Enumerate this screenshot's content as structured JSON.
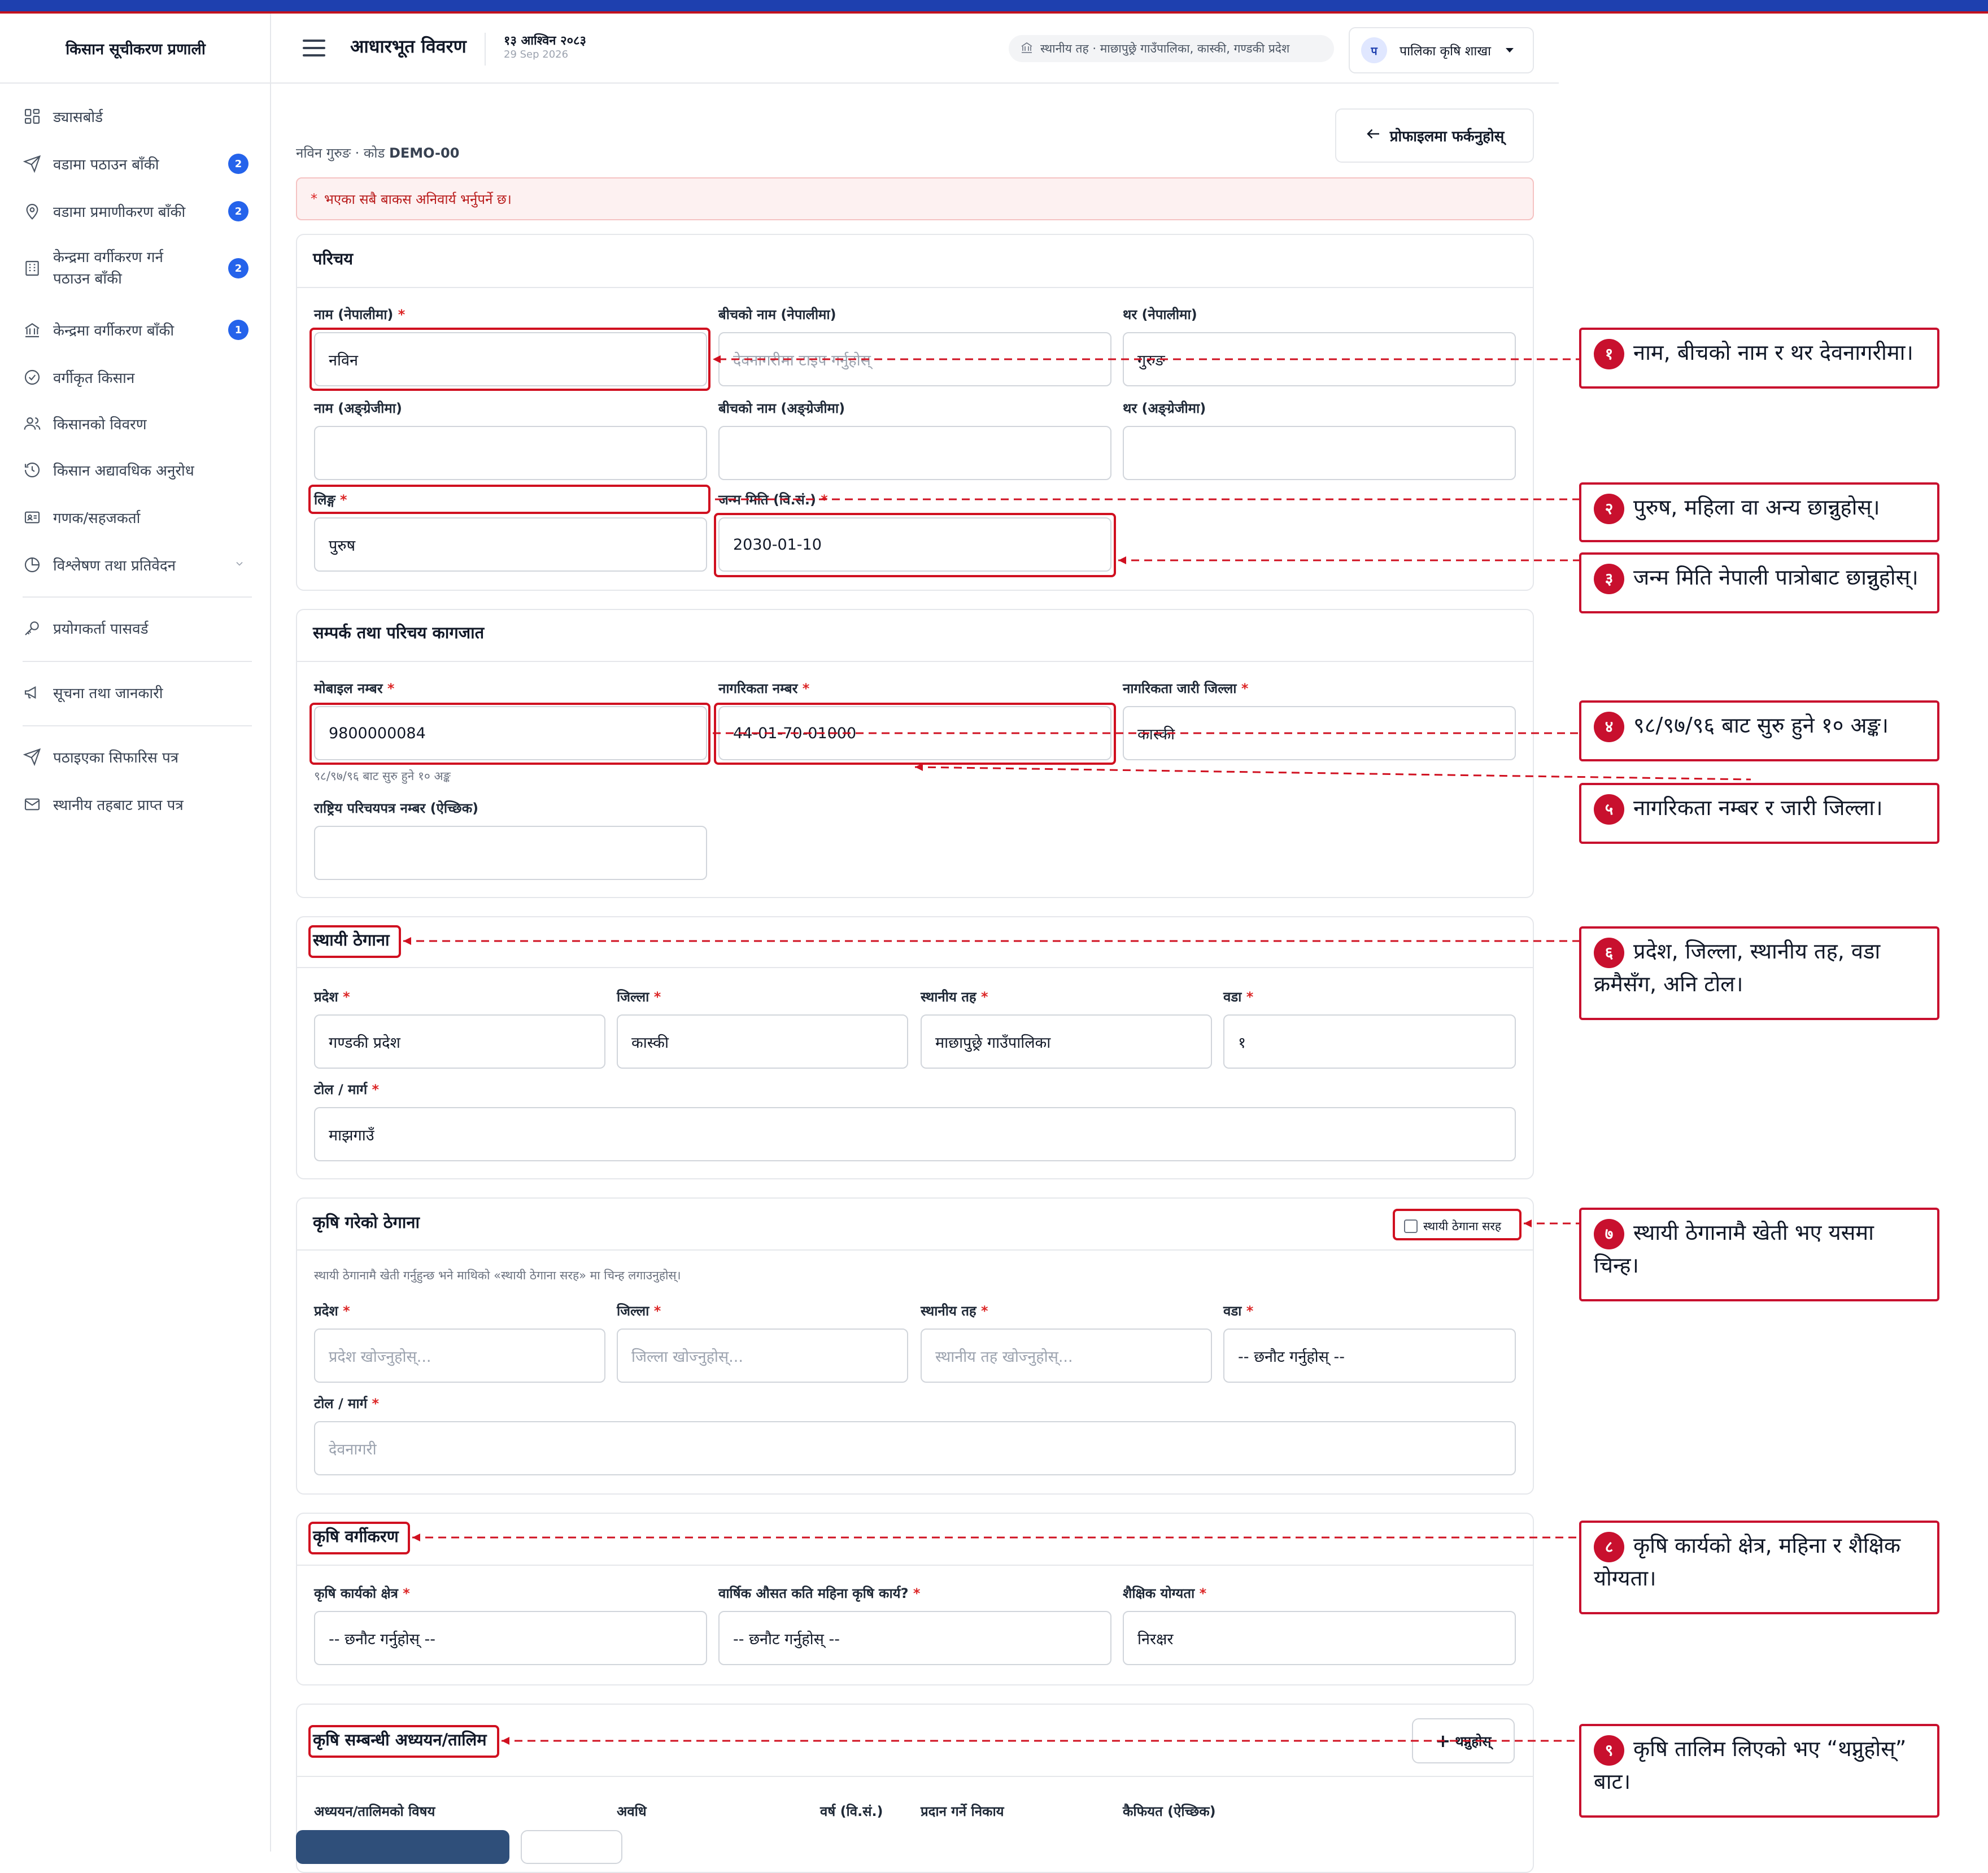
{
  "app": {
    "title": "किसान सूचीकरण प्रणाली"
  },
  "sidebar": {
    "items": [
      {
        "label": "ड्यासबोर्ड"
      },
      {
        "label": "वडामा पठाउन बाँकी",
        "badge": "2"
      },
      {
        "label": "वडामा प्रमाणीकरण बाँकी",
        "badge": "2"
      },
      {
        "label": "केन्द्रमा वर्गीकरण गर्न",
        "label2": "पठाउन बाँकी",
        "badge": "2"
      },
      {
        "label": "केन्द्रमा वर्गीकरण बाँकी",
        "badge": "1"
      },
      {
        "label": "वर्गीकृत किसान"
      },
      {
        "label": "किसानको विवरण"
      },
      {
        "label": "किसान अद्यावधिक अनुरोध"
      },
      {
        "label": "गणक/सहजकर्ता"
      },
      {
        "label": "विश्लेषण तथा प्रतिवेदन"
      },
      {
        "label": "प्रयोगकर्ता पासवर्ड"
      },
      {
        "label": "सूचना तथा जानकारी"
      },
      {
        "label": "पठाइएका सिफारिस पत्र"
      },
      {
        "label": "स्थानीय तहबाट प्राप्त पत्र"
      }
    ]
  },
  "header": {
    "page_title": "आधारभूत विवरण",
    "date_bs": "१३ आश्विन २०८३",
    "date_ad": "29 Sep 2026",
    "location": "स्थानीय तह · माछापुछ्रे गाउँपालिका, कास्की, गण्डकी प्रदेश",
    "user_initial": "प",
    "user_name": "पालिका कृषि शाखा"
  },
  "main": {
    "back_label": "प्रोफाइलमा फर्कनुहोस्",
    "sub_name": "नविन गुरुङ · कोड ",
    "sub_code": "DEMO-00",
    "alert": "भएका सबै बाकस अनिवार्य भर्नुपर्ने छ।",
    "required_mark": "*"
  },
  "intro": {
    "title": "परिचय",
    "name_np_label": "नाम (नेपालीमा)",
    "name_np_value": "नविन",
    "middle_np_label": "बीचको नाम (नेपालीमा)",
    "middle_np_placeholder": "देवनागरीमा टाइप गर्नुहोस्",
    "surname_np_label": "थर (नेपालीमा)",
    "surname_np_value": "गुरुङ",
    "name_en_label": "नाम (अङ्ग्रेजीमा)",
    "middle_en_label": "बीचको नाम (अङ्ग्रेजीमा)",
    "surname_en_label": "थर (अङ्ग्रेजीमा)",
    "gender_label": "लिङ्ग",
    "gender_value": "पुरुष",
    "dob_label": "जन्म मिति (वि.सं.)",
    "dob_value": "2030-01-10"
  },
  "contact": {
    "title": "सम्पर्क तथा परिचय कागजात",
    "mobile_label": "मोबाइल नम्बर",
    "mobile_value": "9800000084",
    "mobile_hint": "९८/९७/९६ बाट सुरु हुने १० अङ्क",
    "citizenship_label": "नागरिकता नम्बर",
    "citizenship_value": "44-01-70-01000",
    "district_label": "नागरिकता जारी जिल्ला",
    "district_value": "कास्की",
    "nid_label": "राष्ट्रिय परिचयपत्र नम्बर (ऐच्छिक)"
  },
  "permanent": {
    "title": "स्थायी ठेगाना",
    "province_label": "प्रदेश",
    "province_value": "गण्डकी प्रदेश",
    "district_label": "जिल्ला",
    "district_value": "कास्की",
    "local_label": "स्थानीय तह",
    "local_value": "माछापुछ्रे गाउँपालिका",
    "ward_label": "वडा",
    "ward_value": "१",
    "tole_label": "टोल / मार्ग",
    "tole_value": "माझगाउँ"
  },
  "farm": {
    "title": "कृषि गरेको ठेगाना",
    "same_label": "स्थायी ठेगाना सरह",
    "hint": "स्थायी ठेगानामै खेती गर्नुहुन्छ भने माथिको «स्थायी ठेगाना सरह» मा चिन्ह लगाउनुहोस्।",
    "province_label": "प्रदेश",
    "province_ph": "प्रदेश खोज्नुहोस्...",
    "district_label": "जिल्ला",
    "district_ph": "जिल्ला खोज्नुहोस्...",
    "local_label": "स्थानीय तह",
    "local_ph": "स्थानीय तह खोज्नुहोस्...",
    "ward_label": "वडा",
    "ward_value": "-- छनौट गर्नुहोस् --",
    "tole_label": "टोल / मार्ग",
    "tole_ph": "देवनागरी"
  },
  "classification": {
    "title": "कृषि वर्गीकरण",
    "area_label": "कृषि कार्यको क्षेत्र",
    "area_value": "-- छनौट गर्नुहोस् --",
    "months_label": "वार्षिक औसत कति महिना कृषि कार्य?",
    "months_value": "-- छनौट गर्नुहोस् --",
    "edu_label": "शैक्षिक योग्यता",
    "edu_value": "निरक्षर"
  },
  "training": {
    "title": "कृषि सम्बन्धी अध्ययन/तालिम",
    "add_label": "थप्नुहोस्",
    "cols": [
      "अध्ययन/तालिमको विषय",
      "अवधि",
      "वर्ष (वि.सं.)",
      "प्रदान गर्ने निकाय",
      "कैफियत (ऐच्छिक)"
    ]
  },
  "annotations": [
    {
      "n": "१",
      "text": "नाम, बीचको नाम र थर देवनागरीमा।"
    },
    {
      "n": "२",
      "text": "पुरुष, महिला वा अन्य छान्नुहोस्।"
    },
    {
      "n": "३",
      "text": "जन्म मिति नेपाली पात्रोबाट छान्नुहोस्।"
    },
    {
      "n": "४",
      "text": "९८/९७/९६ बाट सुरु हुने १० अङ्क।"
    },
    {
      "n": "५",
      "text": "नागरिकता नम्बर र जारी जिल्ला।"
    },
    {
      "n": "६",
      "text": "प्रदेश, जिल्ला, स्थानीय तह, वडा क्रमैसँग, अनि टोल।"
    },
    {
      "n": "७",
      "text": "स्थायी ठेगानामै खेती भए यसमा चिन्ह।"
    },
    {
      "n": "८",
      "text": "कृषि कार्यको क्षेत्र, महिना र शैक्षिक योग्यता।"
    },
    {
      "n": "९",
      "text": "कृषि तालिम लिएको भए “थप्नुहोस्” बाट।"
    }
  ],
  "colors": {
    "accent": "#c8102e",
    "brand": "#1e40af",
    "badge": "#2563eb"
  }
}
